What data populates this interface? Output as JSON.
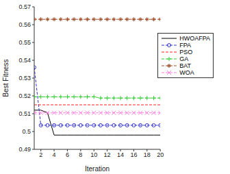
{
  "chart_data": {
    "type": "line",
    "x_label": "Iteration",
    "y_label": "Best Fitness",
    "x": [
      1,
      2,
      3,
      4,
      5,
      6,
      7,
      8,
      9,
      10,
      11,
      12,
      13,
      14,
      15,
      16,
      17,
      18,
      19,
      20
    ],
    "xlim": [
      1,
      20
    ],
    "xticks": [
      2,
      4,
      6,
      8,
      10,
      12,
      14,
      16,
      18,
      20
    ],
    "ylim": [
      0.49,
      0.57
    ],
    "yticks": [
      0.49,
      0.5,
      0.51,
      0.52,
      0.53,
      0.54,
      0.55,
      0.56,
      0.57
    ],
    "grid": false,
    "legend": "right",
    "series": [
      {
        "name": "HWOAFPA",
        "color": "#000000",
        "marker": "none",
        "line_style": "solid",
        "values": [
          0.512,
          0.512,
          0.5105,
          0.498,
          0.498,
          0.498,
          0.498,
          0.498,
          0.498,
          0.498,
          0.498,
          0.498,
          0.498,
          0.498,
          0.498,
          0.498,
          0.498,
          0.498,
          0.498,
          0.498
        ]
      },
      {
        "name": "FPA",
        "color": "#3333cc",
        "marker": "circle",
        "line_style": "dashed",
        "values": [
          0.536,
          0.5035,
          0.5035,
          0.5035,
          0.5035,
          0.5035,
          0.5035,
          0.5035,
          0.5035,
          0.5035,
          0.5035,
          0.5035,
          0.5035,
          0.5035,
          0.5035,
          0.5035,
          0.5035,
          0.5035,
          0.5035,
          0.5035
        ]
      },
      {
        "name": "PSO",
        "color": "#ff2020",
        "marker": "none",
        "line_style": "dashed",
        "values": [
          0.515,
          0.515,
          0.515,
          0.515,
          0.515,
          0.515,
          0.515,
          0.515,
          0.515,
          0.515,
          0.515,
          0.515,
          0.515,
          0.515,
          0.515,
          0.515,
          0.515,
          0.515,
          0.515,
          0.515
        ]
      },
      {
        "name": "GA",
        "color": "#33cc33",
        "marker": "plus",
        "line_style": "dashed",
        "values": [
          0.5195,
          0.5195,
          0.5195,
          0.5195,
          0.5195,
          0.5195,
          0.5195,
          0.5195,
          0.5195,
          0.5195,
          0.5188,
          0.5188,
          0.5188,
          0.5188,
          0.5188,
          0.5188,
          0.5188,
          0.5188,
          0.5188,
          0.5188
        ]
      },
      {
        "name": "BAT",
        "color": "#a0522d",
        "marker": "star",
        "line_style": "dashed",
        "values": [
          0.563,
          0.563,
          0.563,
          0.563,
          0.563,
          0.563,
          0.563,
          0.563,
          0.563,
          0.563,
          0.563,
          0.563,
          0.563,
          0.563,
          0.563,
          0.563,
          0.563,
          0.563,
          0.563,
          0.563
        ]
      },
      {
        "name": "WOA",
        "color": "#ff80e0",
        "marker": "x",
        "line_style": "dashed",
        "values": [
          0.5105,
          0.5105,
          0.5105,
          0.5105,
          0.5105,
          0.5105,
          0.5105,
          0.5105,
          0.5105,
          0.5105,
          0.5105,
          0.5105,
          0.5105,
          0.5105,
          0.5105,
          0.5105,
          0.5105,
          0.5105,
          0.5105,
          0.5105
        ]
      }
    ]
  }
}
